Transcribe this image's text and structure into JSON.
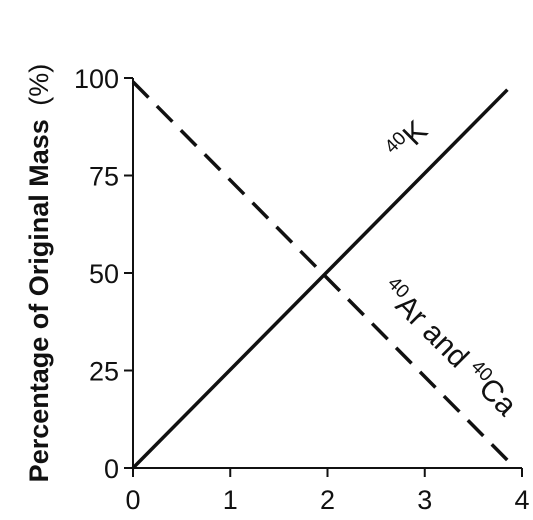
{
  "chart_data": {
    "type": "line",
    "title": "",
    "xlabel": "",
    "ylabel": "Percentage of Original Mass",
    "ylabel_unit": "(%)",
    "xlim": [
      0,
      4
    ],
    "ylim": [
      0,
      100
    ],
    "x_ticks": [
      "0",
      "1",
      "2",
      "3",
      "4"
    ],
    "y_ticks": [
      "0",
      "25",
      "50",
      "75",
      "100"
    ],
    "grid": false,
    "series": [
      {
        "style": "solid",
        "x": [
          0,
          3.85
        ],
        "y": [
          0,
          97
        ]
      },
      {
        "style": "dashed",
        "x": [
          0,
          3.85
        ],
        "y": [
          99,
          2
        ]
      }
    ],
    "annotations": [
      {
        "sup": "40",
        "text": "K"
      },
      {
        "sup": "40",
        "text": "Ar and "
      },
      {
        "sup": "40",
        "text": "Ca"
      }
    ]
  }
}
